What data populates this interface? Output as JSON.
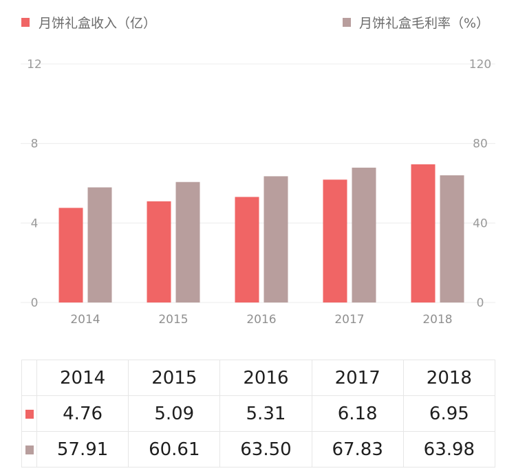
{
  "colors": {
    "revenue": "#f06565",
    "margin": "#b89e9d",
    "grid": "#ececec"
  },
  "legend": {
    "revenue": "月饼礼盒收入（亿）",
    "margin": "月饼礼盒毛利率（%）"
  },
  "chart_data": {
    "type": "bar",
    "categories": [
      "2014",
      "2015",
      "2016",
      "2017",
      "2018"
    ],
    "series": [
      {
        "name": "月饼礼盒收入（亿）",
        "axis": "left",
        "values": [
          4.76,
          5.09,
          5.31,
          6.18,
          6.95
        ]
      },
      {
        "name": "月饼礼盒毛利率（%）",
        "axis": "right",
        "values": [
          57.91,
          60.61,
          63.5,
          67.83,
          63.98
        ]
      }
    ],
    "ylim_left": [
      0,
      12
    ],
    "yticks_left": [
      "0",
      "4",
      "8",
      "12"
    ],
    "ylim_right": [
      0,
      120
    ],
    "yticks_right": [
      "0",
      "40",
      "80",
      "120"
    ],
    "grid": true,
    "legend_position": "top"
  },
  "table": {
    "years": [
      "2014",
      "2015",
      "2016",
      "2017",
      "2018"
    ],
    "revenue": [
      "4.76",
      "5.09",
      "5.31",
      "6.18",
      "6.95"
    ],
    "margin": [
      "57.91",
      "60.61",
      "63.50",
      "67.83",
      "63.98"
    ]
  }
}
